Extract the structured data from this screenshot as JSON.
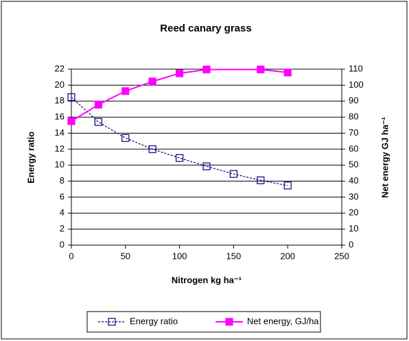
{
  "chart_data": {
    "type": "line",
    "title": "Reed canary grass",
    "xlabel": "Nitrogen kg ha⁻¹",
    "ylabel": "Energy ratio",
    "y2label": "Net energy GJ ha⁻¹",
    "xlim": [
      0,
      250
    ],
    "xticks": [
      0,
      50,
      100,
      150,
      200,
      250
    ],
    "ylim": [
      0,
      22
    ],
    "yticks": [
      0,
      2,
      4,
      6,
      8,
      10,
      12,
      14,
      16,
      18,
      20,
      22
    ],
    "y2lim": [
      0,
      110
    ],
    "y2ticks": [
      0,
      10,
      20,
      30,
      40,
      50,
      60,
      70,
      80,
      90,
      100,
      110
    ],
    "grid": true,
    "legend": "bottom",
    "series": [
      {
        "name": "Energy ratio",
        "color": "#000080",
        "dashed": true,
        "marker_fill": "none",
        "x": [
          0,
          25,
          50,
          75,
          100,
          125,
          150,
          175,
          200
        ],
        "values": [
          18.5,
          15.4,
          13.4,
          12.0,
          10.9,
          9.85,
          8.9,
          8.1,
          7.45
        ]
      },
      {
        "name": "Net energy, GJ/ha",
        "color": "#ff00ff",
        "dashed": false,
        "axis": "y2",
        "x": [
          0,
          25,
          50,
          75,
          100,
          125,
          175,
          200
        ],
        "values": [
          77.5,
          87.8,
          96.3,
          102.3,
          107.4,
          109.8,
          109.8,
          107.9
        ]
      }
    ]
  }
}
